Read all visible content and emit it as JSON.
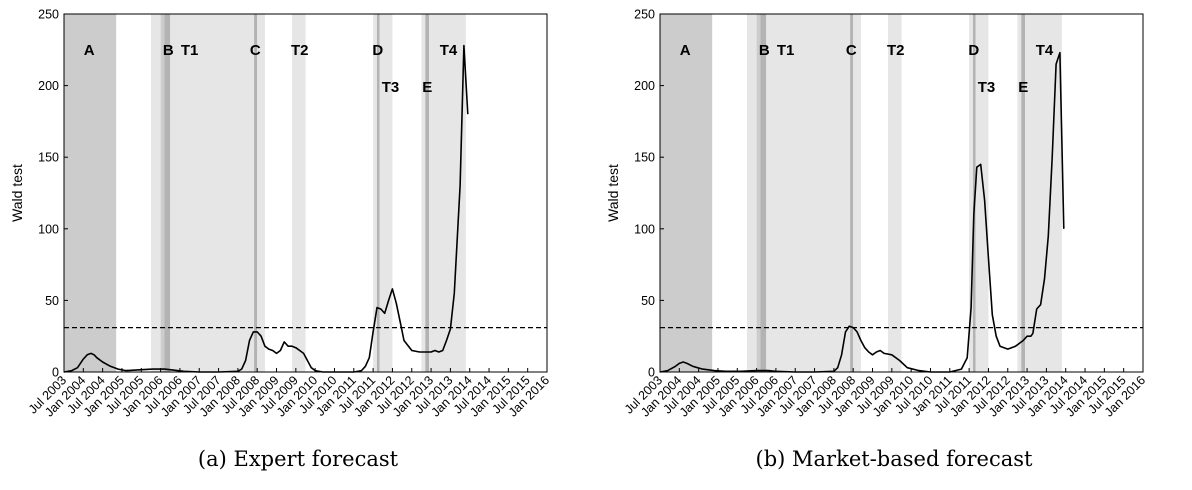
{
  "chart_data": [
    {
      "type": "line",
      "caption": "(a) Expert forecast",
      "ylabel": "Wald test",
      "ylim": [
        0,
        250
      ],
      "yticks": [
        0,
        50,
        100,
        150,
        200,
        250
      ],
      "xlim": [
        2003.5,
        2016.0
      ],
      "xticks": [
        {
          "x": 2003.5,
          "label": "Jul 2003"
        },
        {
          "x": 2004.0,
          "label": "Jan 2004"
        },
        {
          "x": 2004.5,
          "label": "Jul 2004"
        },
        {
          "x": 2005.0,
          "label": "Jan 2005"
        },
        {
          "x": 2005.5,
          "label": "Jul 2005"
        },
        {
          "x": 2006.0,
          "label": "Jan 2006"
        },
        {
          "x": 2006.5,
          "label": "Jul 2006"
        },
        {
          "x": 2007.0,
          "label": "Jan 2007"
        },
        {
          "x": 2007.5,
          "label": "Jul 2007"
        },
        {
          "x": 2008.0,
          "label": "Jan 2008"
        },
        {
          "x": 2008.5,
          "label": "Jul 2008"
        },
        {
          "x": 2009.0,
          "label": "Jan 2009"
        },
        {
          "x": 2009.5,
          "label": "Jul 2009"
        },
        {
          "x": 2010.0,
          "label": "Jan 2010"
        },
        {
          "x": 2010.5,
          "label": "Jul 2010"
        },
        {
          "x": 2011.0,
          "label": "Jan 2011"
        },
        {
          "x": 2011.5,
          "label": "Jul 2011"
        },
        {
          "x": 2012.0,
          "label": "Jan 2012"
        },
        {
          "x": 2012.5,
          "label": "Jul 2012"
        },
        {
          "x": 2013.0,
          "label": "Jan 2013"
        },
        {
          "x": 2013.5,
          "label": "Jul 2013"
        },
        {
          "x": 2014.0,
          "label": "Jan 2014"
        },
        {
          "x": 2014.5,
          "label": "Jul 2014"
        },
        {
          "x": 2015.0,
          "label": "Jan 2015"
        },
        {
          "x": 2015.5,
          "label": "Jul 2015"
        },
        {
          "x": 2016.0,
          "label": "Jan 2016"
        }
      ],
      "threshold": 31,
      "shaded_regions": [
        {
          "x0": 2003.5,
          "x1": 2004.85,
          "shade": "#cccccc"
        },
        {
          "x0": 2005.75,
          "x1": 2006.0,
          "shade": "#e6e6e6"
        },
        {
          "x0": 2006.0,
          "x1": 2006.1,
          "shade": "#cccccc"
        },
        {
          "x0": 2006.1,
          "x1": 2006.25,
          "shade": "#b3b3b3"
        },
        {
          "x0": 2006.25,
          "x1": 2008.42,
          "shade": "#e6e6e6"
        },
        {
          "x0": 2008.42,
          "x1": 2008.5,
          "shade": "#b3b3b3"
        },
        {
          "x0": 2008.5,
          "x1": 2008.7,
          "shade": "#e6e6e6"
        },
        {
          "x0": 2009.4,
          "x1": 2009.75,
          "shade": "#e6e6e6"
        },
        {
          "x0": 2011.5,
          "x1": 2011.6,
          "shade": "#e6e6e6"
        },
        {
          "x0": 2011.6,
          "x1": 2011.67,
          "shade": "#b3b3b3"
        },
        {
          "x0": 2011.67,
          "x1": 2012.0,
          "shade": "#e6e6e6"
        },
        {
          "x0": 2012.75,
          "x1": 2012.85,
          "shade": "#e6e6e6"
        },
        {
          "x0": 2012.85,
          "x1": 2012.95,
          "shade": "#b3b3b3"
        },
        {
          "x0": 2012.95,
          "x1": 2013.9,
          "shade": "#e6e6e6"
        }
      ],
      "region_labels": [
        {
          "text": "A",
          "x": 2004.15,
          "y": 225
        },
        {
          "text": "B",
          "x": 2006.2,
          "y": 225
        },
        {
          "text": "T1",
          "x": 2006.75,
          "y": 225
        },
        {
          "text": "C",
          "x": 2008.45,
          "y": 225
        },
        {
          "text": "T2",
          "x": 2009.6,
          "y": 225
        },
        {
          "text": "D",
          "x": 2011.62,
          "y": 225
        },
        {
          "text": "T3",
          "x": 2011.95,
          "y": 199
        },
        {
          "text": "E",
          "x": 2012.9,
          "y": 199
        },
        {
          "text": "T4",
          "x": 2013.45,
          "y": 225
        }
      ],
      "series": [
        {
          "x": [
            2003.5,
            2003.7,
            2003.85,
            2004.0,
            2004.1,
            2004.2,
            2004.28,
            2004.35,
            2004.5,
            2004.7,
            2004.9,
            2005.1,
            2005.4,
            2005.8,
            2006.1,
            2006.3,
            2006.6,
            2007.0,
            2007.5,
            2008.0,
            2008.1,
            2008.2,
            2008.3,
            2008.4,
            2008.5,
            2008.6,
            2008.7,
            2008.8,
            2008.9,
            2009.0,
            2009.1,
            2009.2,
            2009.3,
            2009.4,
            2009.5,
            2009.6,
            2009.7,
            2009.8,
            2009.9,
            2010.0,
            2010.2,
            2010.5,
            2011.0,
            2011.2,
            2011.3,
            2011.4,
            2011.5,
            2011.6,
            2011.7,
            2011.8,
            2011.9,
            2012.0,
            2012.1,
            2012.2,
            2012.3,
            2012.5,
            2012.7,
            2012.9,
            2013.0,
            2013.1,
            2013.2,
            2013.3,
            2013.4,
            2013.5,
            2013.6,
            2013.75,
            2013.85,
            2013.95
          ],
          "values": [
            0,
            1,
            3,
            9,
            12,
            13,
            12,
            10,
            7,
            4,
            2,
            1,
            1.5,
            2,
            2,
            1.5,
            0.5,
            0,
            0,
            0.5,
            2,
            8,
            22,
            28,
            28,
            25,
            18,
            16,
            15,
            13,
            15,
            21,
            18,
            18,
            17,
            15,
            13,
            8,
            3,
            1,
            0,
            0,
            0,
            1,
            4,
            10,
            28,
            45,
            44,
            41,
            50,
            58,
            48,
            35,
            22,
            15,
            14,
            14,
            14,
            15,
            14,
            15,
            22,
            30,
            55,
            130,
            228,
            180
          ]
        }
      ]
    },
    {
      "type": "line",
      "caption": "(b) Market-based forecast",
      "ylabel": "Wald test",
      "ylim": [
        0,
        250
      ],
      "yticks": [
        0,
        50,
        100,
        150,
        200,
        250
      ],
      "xlim": [
        2003.5,
        2016.0
      ],
      "xticks": [
        {
          "x": 2003.5,
          "label": "Jul 2003"
        },
        {
          "x": 2004.0,
          "label": "Jan 2004"
        },
        {
          "x": 2004.5,
          "label": "Jul 2004"
        },
        {
          "x": 2005.0,
          "label": "Jan 2005"
        },
        {
          "x": 2005.5,
          "label": "Jul 2005"
        },
        {
          "x": 2006.0,
          "label": "Jan 2006"
        },
        {
          "x": 2006.5,
          "label": "Jul 2006"
        },
        {
          "x": 2007.0,
          "label": "Jan 2007"
        },
        {
          "x": 2007.5,
          "label": "Jul 2007"
        },
        {
          "x": 2008.0,
          "label": "Jan 2008"
        },
        {
          "x": 2008.5,
          "label": "Jul 2008"
        },
        {
          "x": 2009.0,
          "label": "Jan 2009"
        },
        {
          "x": 2009.5,
          "label": "Jul 2009"
        },
        {
          "x": 2010.0,
          "label": "Jan 2010"
        },
        {
          "x": 2010.5,
          "label": "Jul 2010"
        },
        {
          "x": 2011.0,
          "label": "Jan 2011"
        },
        {
          "x": 2011.5,
          "label": "Jul 2011"
        },
        {
          "x": 2012.0,
          "label": "Jan 2012"
        },
        {
          "x": 2012.5,
          "label": "Jul 2012"
        },
        {
          "x": 2013.0,
          "label": "Jan 2013"
        },
        {
          "x": 2013.5,
          "label": "Jul 2013"
        },
        {
          "x": 2014.0,
          "label": "Jan 2014"
        },
        {
          "x": 2014.5,
          "label": "Jul 2014"
        },
        {
          "x": 2015.0,
          "label": "Jan 2015"
        },
        {
          "x": 2015.5,
          "label": "Jul 2015"
        },
        {
          "x": 2016.0,
          "label": "Jan 2016"
        }
      ],
      "threshold": 31,
      "shaded_regions": [
        {
          "x0": 2003.5,
          "x1": 2004.85,
          "shade": "#cccccc"
        },
        {
          "x0": 2005.75,
          "x1": 2006.0,
          "shade": "#e6e6e6"
        },
        {
          "x0": 2006.0,
          "x1": 2006.1,
          "shade": "#cccccc"
        },
        {
          "x0": 2006.1,
          "x1": 2006.25,
          "shade": "#b3b3b3"
        },
        {
          "x0": 2006.25,
          "x1": 2008.42,
          "shade": "#e6e6e6"
        },
        {
          "x0": 2008.42,
          "x1": 2008.5,
          "shade": "#b3b3b3"
        },
        {
          "x0": 2008.5,
          "x1": 2008.7,
          "shade": "#e6e6e6"
        },
        {
          "x0": 2009.4,
          "x1": 2009.75,
          "shade": "#e6e6e6"
        },
        {
          "x0": 2011.5,
          "x1": 2011.6,
          "shade": "#e6e6e6"
        },
        {
          "x0": 2011.6,
          "x1": 2011.67,
          "shade": "#b3b3b3"
        },
        {
          "x0": 2011.67,
          "x1": 2012.0,
          "shade": "#e6e6e6"
        },
        {
          "x0": 2012.75,
          "x1": 2012.85,
          "shade": "#e6e6e6"
        },
        {
          "x0": 2012.85,
          "x1": 2012.95,
          "shade": "#b3b3b3"
        },
        {
          "x0": 2012.95,
          "x1": 2013.9,
          "shade": "#e6e6e6"
        }
      ],
      "region_labels": [
        {
          "text": "A",
          "x": 2004.15,
          "y": 225
        },
        {
          "text": "B",
          "x": 2006.2,
          "y": 225
        },
        {
          "text": "T1",
          "x": 2006.75,
          "y": 225
        },
        {
          "text": "C",
          "x": 2008.45,
          "y": 225
        },
        {
          "text": "T2",
          "x": 2009.6,
          "y": 225
        },
        {
          "text": "D",
          "x": 2011.62,
          "y": 225
        },
        {
          "text": "T3",
          "x": 2011.95,
          "y": 199
        },
        {
          "text": "E",
          "x": 2012.9,
          "y": 199
        },
        {
          "text": "T4",
          "x": 2013.45,
          "y": 225
        }
      ],
      "series": [
        {
          "x": [
            2003.5,
            2003.7,
            2003.9,
            2004.0,
            2004.1,
            2004.2,
            2004.35,
            2004.6,
            2004.9,
            2005.2,
            2005.6,
            2006.0,
            2006.3,
            2006.5,
            2007.0,
            2007.5,
            2008.0,
            2008.1,
            2008.2,
            2008.3,
            2008.4,
            2008.5,
            2008.6,
            2008.7,
            2008.8,
            2008.9,
            2009.0,
            2009.1,
            2009.2,
            2009.3,
            2009.5,
            2009.7,
            2009.9,
            2010.2,
            2010.5,
            2011.0,
            2011.3,
            2011.45,
            2011.55,
            2011.62,
            2011.7,
            2011.8,
            2011.9,
            2012.0,
            2012.1,
            2012.2,
            2012.3,
            2012.5,
            2012.7,
            2012.9,
            2013.0,
            2013.1,
            2013.15,
            2013.25,
            2013.35,
            2013.45,
            2013.55,
            2013.65,
            2013.75,
            2013.85,
            2013.95
          ],
          "values": [
            0,
            1,
            4,
            6,
            7,
            6,
            4,
            2,
            1,
            0.5,
            0.5,
            1,
            1,
            0.5,
            0,
            0,
            0.5,
            3,
            12,
            28,
            32,
            31,
            28,
            22,
            17,
            14,
            12,
            14,
            15,
            13,
            12,
            8,
            3,
            1,
            0,
            0,
            2,
            10,
            45,
            110,
            143,
            145,
            120,
            80,
            40,
            25,
            18,
            16,
            18,
            22,
            25,
            25,
            27,
            44,
            47,
            65,
            95,
            150,
            215,
            223,
            100
          ]
        }
      ]
    }
  ]
}
